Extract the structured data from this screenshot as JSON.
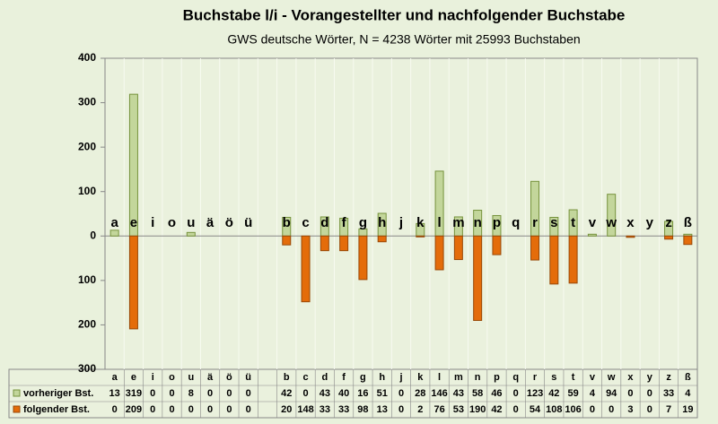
{
  "chart_data": {
    "type": "bar",
    "title": "Buchstabe l/i - Vorangestellter und nachfolgender Buchstabe",
    "subtitle": "GWS deutsche Wörter, N = 4238 Wörter mit 25993 Buchstaben",
    "categories": [
      "a",
      "e",
      "i",
      "o",
      "u",
      "ä",
      "ö",
      "ü",
      null,
      "b",
      "c",
      "d",
      "f",
      "g",
      "h",
      "j",
      "k",
      "l",
      "m",
      "n",
      "p",
      "q",
      "r",
      "s",
      "t",
      "v",
      "w",
      "x",
      "y",
      "z",
      "ß"
    ],
    "series": [
      {
        "name": "vorheriger Bst.",
        "color": "#c3d69b",
        "values": [
          13,
          319,
          0,
          0,
          8,
          0,
          0,
          0,
          null,
          42,
          0,
          43,
          40,
          16,
          51,
          0,
          28,
          146,
          43,
          58,
          46,
          0,
          123,
          42,
          59,
          4,
          94,
          0,
          0,
          33,
          4
        ]
      },
      {
        "name": "folgender Bst.",
        "color": "#e46c0a",
        "values": [
          0,
          -209,
          0,
          0,
          0,
          0,
          0,
          0,
          null,
          -20,
          -148,
          -33,
          -33,
          -98,
          -13,
          0,
          -2,
          -76,
          -53,
          -190,
          -42,
          0,
          -54,
          -108,
          -106,
          0,
          0,
          -3,
          0,
          -7,
          -19
        ],
        "value_labels": [
          "0",
          "209",
          "0",
          "0",
          "0",
          "0",
          "0",
          "0",
          null,
          "20",
          "148",
          "33",
          "33",
          "98",
          "13",
          "0",
          "2",
          "76",
          "53",
          "190",
          "42",
          "0",
          "54",
          "108",
          "106",
          "0",
          "0",
          "3",
          "0",
          "7",
          "19"
        ]
      }
    ],
    "ylim": [
      -300,
      400
    ],
    "yticks": [
      {
        "value": -300,
        "label": "300"
      },
      {
        "value": -200,
        "label": "200"
      },
      {
        "value": -100,
        "label": "100"
      },
      0,
      100,
      200,
      300,
      400
    ],
    "grid": false
  }
}
